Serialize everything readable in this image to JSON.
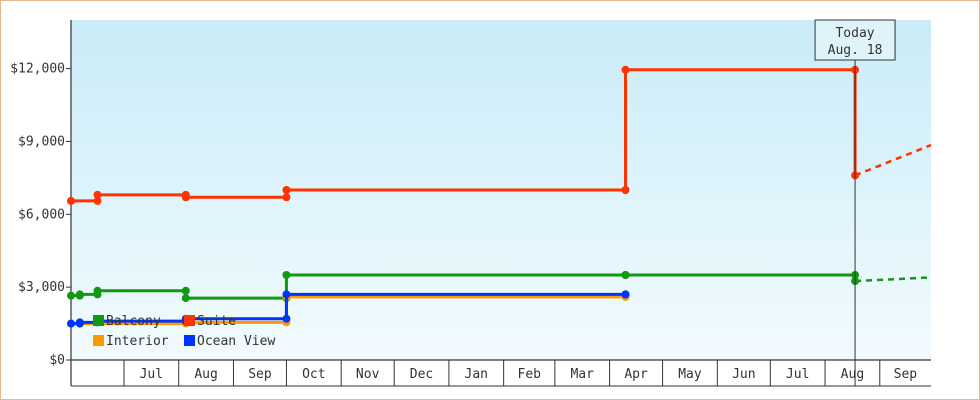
{
  "chart_data": {
    "type": "line",
    "step": true,
    "x_unit": "date",
    "yticks": [
      0,
      3000,
      6000,
      9000,
      12000
    ],
    "ytick_labels": [
      "$0",
      "$3,000",
      "$6,000",
      "$9,000",
      "$12,000"
    ],
    "ylim": [
      0,
      14000
    ],
    "xlim": [
      "2023-06-01",
      "2024-09-30"
    ],
    "month_labels": [
      {
        "label": "Jul",
        "date": "2023-07-01"
      },
      {
        "label": "Aug",
        "date": "2023-08-01"
      },
      {
        "label": "Sep",
        "date": "2023-09-01"
      },
      {
        "label": "Oct",
        "date": "2023-10-01"
      },
      {
        "label": "Nov",
        "date": "2023-11-01"
      },
      {
        "label": "Dec",
        "date": "2023-12-01"
      },
      {
        "label": "Jan",
        "date": "2024-01-01"
      },
      {
        "label": "Feb",
        "date": "2024-02-01"
      },
      {
        "label": "Mar",
        "date": "2024-03-01"
      },
      {
        "label": "Apr",
        "date": "2024-04-01"
      },
      {
        "label": "May",
        "date": "2024-05-01"
      },
      {
        "label": "Jun",
        "date": "2024-06-01"
      },
      {
        "label": "Jul",
        "date": "2024-07-01"
      },
      {
        "label": "Aug",
        "date": "2024-08-01"
      },
      {
        "label": "Sep",
        "date": "2024-09-01"
      }
    ],
    "today": {
      "line1": "Today",
      "line2": "Aug. 18",
      "date": "2024-08-18"
    },
    "legend_placement": "bottom-left",
    "grid": false,
    "series": [
      {
        "name": "Balcony",
        "color": "#119911",
        "points": [
          {
            "x": "2023-06-01",
            "y": 2650
          },
          {
            "x": "2023-06-06",
            "y": 2700
          },
          {
            "x": "2023-06-16",
            "y": 2850
          },
          {
            "x": "2023-08-05",
            "y": 2550
          },
          {
            "x": "2023-10-01",
            "y": 3500
          },
          {
            "x": "2024-04-10",
            "y": 3500
          },
          {
            "x": "2024-08-18",
            "y": 3250
          }
        ],
        "projection": [
          {
            "x": "2024-08-18",
            "y": 3250
          },
          {
            "x": "2024-09-30",
            "y": 3400
          }
        ]
      },
      {
        "name": "Suite",
        "color": "#ff3300",
        "points": [
          {
            "x": "2023-06-01",
            "y": 6550
          },
          {
            "x": "2023-06-16",
            "y": 6800
          },
          {
            "x": "2023-08-05",
            "y": 6700
          },
          {
            "x": "2023-10-01",
            "y": 7000
          },
          {
            "x": "2024-04-10",
            "y": 11950
          },
          {
            "x": "2024-08-18",
            "y": 7600
          }
        ],
        "projection": [
          {
            "x": "2024-08-18",
            "y": 7600
          },
          {
            "x": "2024-09-30",
            "y": 8850
          }
        ]
      },
      {
        "name": "Interior",
        "color": "#ff9900",
        "points": [
          {
            "x": "2023-06-01",
            "y": 1500
          },
          {
            "x": "2023-08-05",
            "y": 1550
          },
          {
            "x": "2023-10-01",
            "y": 2600
          },
          {
            "x": "2024-04-10",
            "y": 2600
          }
        ],
        "projection": []
      },
      {
        "name": "Ocean View",
        "color": "#0033ff",
        "points": [
          {
            "x": "2023-06-01",
            "y": 1500
          },
          {
            "x": "2023-06-06",
            "y": 1550
          },
          {
            "x": "2023-06-16",
            "y": 1600
          },
          {
            "x": "2023-08-05",
            "y": 1700
          },
          {
            "x": "2023-10-01",
            "y": 2700
          },
          {
            "x": "2024-04-10",
            "y": 2700
          }
        ],
        "projection": []
      }
    ]
  }
}
